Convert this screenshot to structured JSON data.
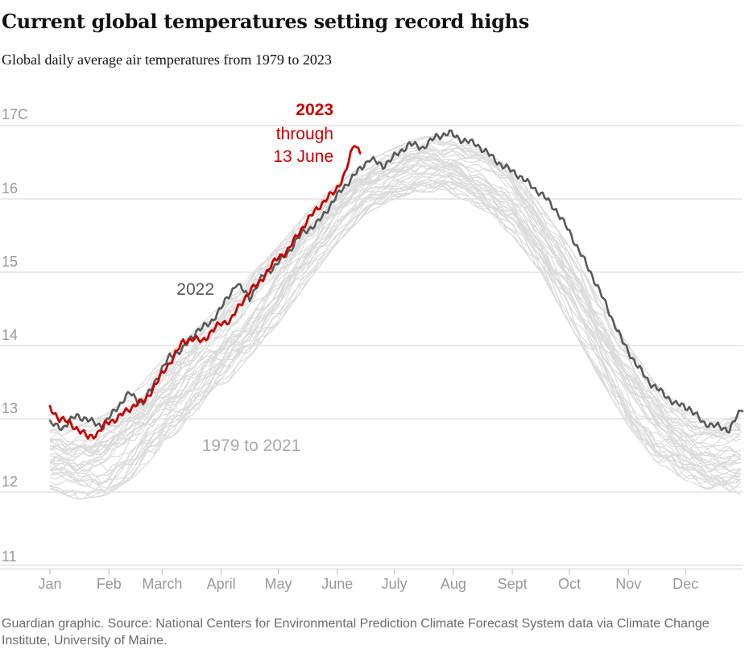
{
  "title": "Current global temperatures setting record highs",
  "subtitle": "Global daily average air temperatures from 1979 to 2023",
  "footer": "Guardian graphic. Source: National Centers for Environmental Prediction Climate Forecast System data via Climate Change Institute, University of Maine.",
  "chart_data": {
    "type": "line",
    "title": "Current global temperatures setting record highs",
    "subtitle": "Global daily average air temperatures from 1979 to 2023",
    "xlabel": "",
    "ylabel": "",
    "xlim": [
      1,
      365
    ],
    "ylim": [
      10.9,
      17.1
    ],
    "yticks": [
      {
        "value": 17,
        "label": "17C"
      },
      {
        "value": 16,
        "label": "16"
      },
      {
        "value": 15,
        "label": "15"
      },
      {
        "value": 14,
        "label": "14"
      },
      {
        "value": 13,
        "label": "13"
      },
      {
        "value": 12,
        "label": "12"
      },
      {
        "value": 11,
        "label": "11"
      }
    ],
    "xticks": [
      {
        "day": 1,
        "label": "Jan"
      },
      {
        "day": 32,
        "label": "Feb"
      },
      {
        "day": 60,
        "label": "March"
      },
      {
        "day": 91,
        "label": "April"
      },
      {
        "day": 121,
        "label": "May"
      },
      {
        "day": 152,
        "label": "June"
      },
      {
        "day": 182,
        "label": "July"
      },
      {
        "day": 213,
        "label": "Aug"
      },
      {
        "day": 244,
        "label": "Sept"
      },
      {
        "day": 274,
        "label": "Oct"
      },
      {
        "day": 305,
        "label": "Nov"
      },
      {
        "day": 335,
        "label": "Dec"
      }
    ],
    "grid": true,
    "background_band": {
      "label": "1979 to 2021",
      "color": "#dcdcdc",
      "count": 43,
      "envelope": {
        "x": [
          1,
          15,
          30,
          45,
          60,
          75,
          91,
          106,
          121,
          136,
          152,
          167,
          182,
          197,
          213,
          228,
          244,
          259,
          274,
          289,
          305,
          320,
          335,
          350,
          365
        ],
        "lo": [
          12.05,
          11.9,
          11.95,
          12.2,
          12.6,
          13.0,
          13.4,
          13.85,
          14.3,
          14.85,
          15.4,
          15.8,
          16.0,
          16.1,
          16.05,
          15.85,
          15.5,
          15.0,
          14.3,
          13.6,
          12.9,
          12.4,
          12.15,
          12.0,
          11.95
        ],
        "hi": [
          12.85,
          12.9,
          13.05,
          13.35,
          13.8,
          14.15,
          14.55,
          14.95,
          15.35,
          15.8,
          16.2,
          16.5,
          16.7,
          16.85,
          16.85,
          16.7,
          16.4,
          15.9,
          15.35,
          14.65,
          14.0,
          13.45,
          13.1,
          12.95,
          13.05
        ]
      }
    },
    "series": [
      {
        "name": "2022",
        "color": "#5a5a5a",
        "x": [
          1,
          8,
          15,
          22,
          29,
          36,
          43,
          50,
          57,
          64,
          71,
          78,
          85,
          92,
          99,
          106,
          113,
          120,
          127,
          134,
          141,
          148,
          155,
          162,
          169,
          176,
          183,
          190,
          197,
          204,
          211,
          218,
          225,
          232,
          239,
          246,
          253,
          260,
          267,
          274,
          281,
          288,
          295,
          302,
          309,
          316,
          323,
          330,
          337,
          344,
          351,
          358,
          365
        ],
        "y": [
          12.93,
          12.88,
          13.05,
          12.97,
          12.9,
          13.15,
          13.35,
          13.2,
          13.55,
          13.85,
          13.95,
          14.2,
          14.3,
          14.55,
          14.85,
          14.65,
          14.95,
          15.1,
          15.3,
          15.55,
          15.65,
          15.9,
          16.15,
          16.35,
          16.55,
          16.45,
          16.6,
          16.75,
          16.7,
          16.85,
          16.9,
          16.8,
          16.75,
          16.6,
          16.45,
          16.35,
          16.2,
          16.05,
          15.85,
          15.55,
          15.2,
          14.85,
          14.45,
          14.05,
          13.75,
          13.5,
          13.35,
          13.2,
          13.15,
          12.95,
          12.9,
          12.85,
          13.15
        ]
      },
      {
        "name": "2023",
        "label_lines": [
          "2023",
          "through",
          "13 June"
        ],
        "color": "#c70000",
        "x": [
          1,
          6,
          11,
          16,
          21,
          26,
          31,
          36,
          41,
          46,
          51,
          56,
          61,
          66,
          71,
          76,
          81,
          86,
          91,
          96,
          101,
          106,
          111,
          116,
          121,
          126,
          131,
          136,
          141,
          146,
          151,
          156,
          161,
          164
        ],
        "y": [
          13.15,
          13.0,
          12.95,
          12.85,
          12.75,
          12.8,
          12.95,
          13.0,
          13.1,
          13.2,
          13.25,
          13.45,
          13.65,
          13.85,
          14.05,
          14.1,
          14.05,
          14.2,
          14.3,
          14.35,
          14.55,
          14.75,
          14.85,
          15.05,
          15.2,
          15.3,
          15.5,
          15.7,
          15.85,
          16.0,
          16.1,
          16.35,
          16.75,
          16.65
        ]
      }
    ]
  }
}
